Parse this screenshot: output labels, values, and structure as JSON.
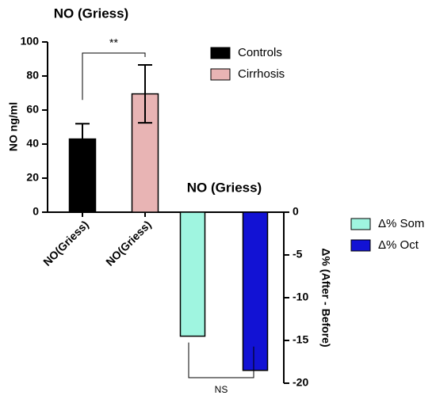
{
  "chart_data": [
    {
      "type": "bar",
      "title": "NO (Griess)",
      "y_label": "NO ng/ml",
      "categories": [
        "NO(Griess)",
        "NO(Griess)"
      ],
      "series": [
        {
          "name": "Controls",
          "color": "#000000",
          "values": [
            43,
            null
          ],
          "errors": [
            9,
            null
          ]
        },
        {
          "name": "Cirrhosis",
          "color": "#e8b4b4",
          "values": [
            null,
            69.5
          ],
          "errors": [
            null,
            17
          ]
        }
      ],
      "ylim": [
        0,
        100
      ],
      "yticks": [
        0,
        20,
        40,
        60,
        80,
        100
      ],
      "annotations": [
        "**"
      ]
    },
    {
      "type": "bar",
      "title": "NO (Griess)",
      "y_label": "Δ% (After - Before)",
      "series": [
        {
          "name": "Δ% Som",
          "color": "#9ff5e0",
          "values": [
            -14.5
          ]
        },
        {
          "name": "Δ% Oct",
          "color": "#1212d4",
          "values": [
            -18.5
          ]
        }
      ],
      "ylim": [
        -20,
        0
      ],
      "yticks": [
        -20,
        -15,
        -10,
        -5,
        0
      ],
      "annotations": [
        "NS"
      ]
    }
  ]
}
